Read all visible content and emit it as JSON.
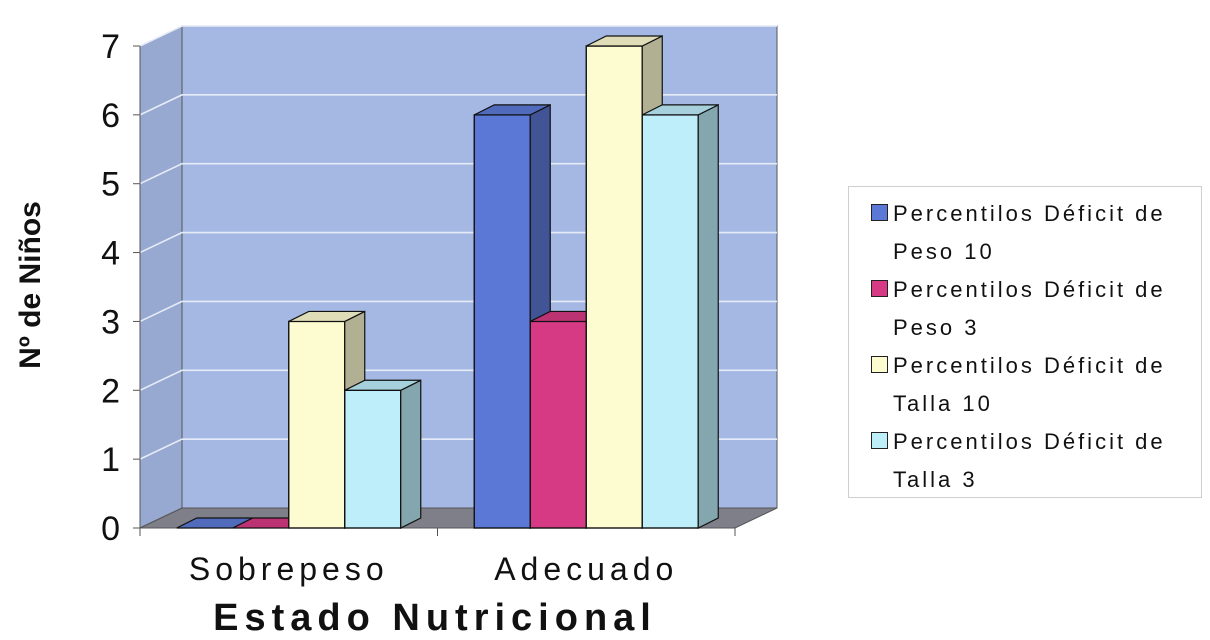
{
  "chart_data": {
    "type": "bar",
    "title": "",
    "xlabel": "Estado Nutricional",
    "ylabel": "Nº de Niños",
    "categories": [
      "Sobrepeso",
      "Adecuado"
    ],
    "series": [
      {
        "name": "Percentilos Déficit de Peso 10",
        "values": [
          0,
          6
        ],
        "color": "#5b78d6"
      },
      {
        "name": "Percentilos Déficit de Peso 3",
        "values": [
          0,
          3
        ],
        "color": "#d63a84"
      },
      {
        "name": "Percentilos Déficit de Talla 10",
        "values": [
          3,
          7
        ],
        "color": "#fdfbd0"
      },
      {
        "name": "Percentilos Déficit de Talla 3",
        "values": [
          2,
          6
        ],
        "color": "#bdeefa"
      }
    ],
    "ylim": [
      0,
      7
    ],
    "yticks": [
      "0",
      "1",
      "2",
      "3",
      "4",
      "5",
      "6",
      "7"
    ],
    "grid": true,
    "three_d": true,
    "plot_background": "#a4b8e3",
    "legend_position": "right"
  }
}
